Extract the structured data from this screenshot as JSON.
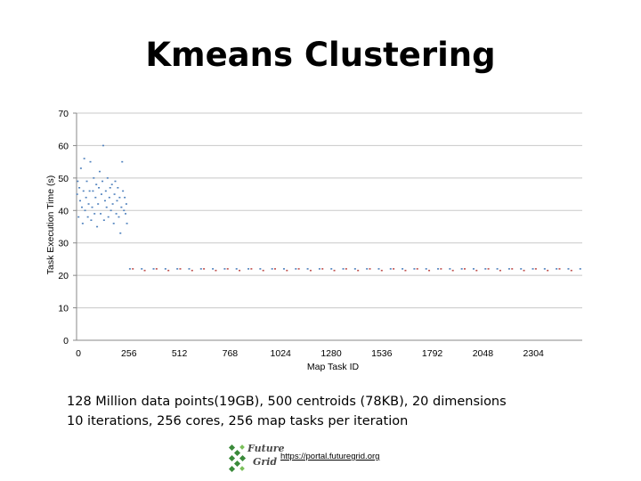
{
  "slide": {
    "title": "Kmeans Clustering",
    "caption_line1": "128 Million data points(19GB), 500 centroids (78KB), 20 dimensions",
    "caption_line2": "10 iterations, 256 cores, 256 map tasks per iteration",
    "logo_text_top": "Future",
    "logo_text_bottom": "Grid",
    "link_text": "https://portal.futuregrid.org"
  },
  "chart_data": {
    "type": "scatter",
    "title": "",
    "xlabel": "Map Task ID",
    "ylabel": "Task Execution Time (s)",
    "xlim": [
      0,
      2560
    ],
    "ylim": [
      0,
      70
    ],
    "x_ticks": [
      0,
      256,
      512,
      768,
      1024,
      1280,
      1536,
      1792,
      2048,
      2304
    ],
    "y_ticks": [
      0,
      10,
      20,
      30,
      40,
      50,
      60,
      70
    ],
    "grid": "horizontal",
    "legend": "none",
    "series": [
      {
        "color": "#4f81bd",
        "points": [
          [
            3,
            45
          ],
          [
            6,
            49
          ],
          [
            10,
            38
          ],
          [
            14,
            47
          ],
          [
            18,
            43
          ],
          [
            22,
            53
          ],
          [
            27,
            41
          ],
          [
            31,
            36
          ],
          [
            35,
            46
          ],
          [
            39,
            56
          ],
          [
            43,
            40
          ],
          [
            48,
            44
          ],
          [
            52,
            49
          ],
          [
            57,
            38
          ],
          [
            61,
            42
          ],
          [
            66,
            46
          ],
          [
            70,
            55
          ],
          [
            74,
            37
          ],
          [
            79,
            41
          ],
          [
            83,
            46
          ],
          [
            87,
            50
          ],
          [
            91,
            39
          ],
          [
            96,
            44
          ],
          [
            100,
            48
          ],
          [
            104,
            35
          ],
          [
            109,
            42
          ],
          [
            113,
            47
          ],
          [
            117,
            52
          ],
          [
            122,
            39
          ],
          [
            126,
            45
          ],
          [
            131,
            49
          ],
          [
            135,
            60
          ],
          [
            139,
            37
          ],
          [
            144,
            43
          ],
          [
            148,
            46
          ],
          [
            152,
            41
          ],
          [
            157,
            50
          ],
          [
            161,
            38
          ],
          [
            166,
            44
          ],
          [
            170,
            47
          ],
          [
            174,
            40
          ],
          [
            179,
            48
          ],
          [
            183,
            42
          ],
          [
            188,
            36
          ],
          [
            192,
            45
          ],
          [
            196,
            49
          ],
          [
            201,
            39
          ],
          [
            205,
            43
          ],
          [
            209,
            47
          ],
          [
            214,
            38
          ],
          [
            218,
            44
          ],
          [
            222,
            33
          ],
          [
            227,
            41
          ],
          [
            231,
            55
          ],
          [
            235,
            46
          ],
          [
            240,
            40
          ],
          [
            244,
            44
          ],
          [
            248,
            39
          ],
          [
            252,
            42
          ],
          [
            255,
            36
          ],
          [
            270,
            22
          ],
          [
            330,
            22
          ],
          [
            390,
            22
          ],
          [
            450,
            22
          ],
          [
            510,
            22
          ],
          [
            570,
            22
          ],
          [
            630,
            22
          ],
          [
            690,
            22
          ],
          [
            750,
            22
          ],
          [
            810,
            22
          ],
          [
            870,
            22
          ],
          [
            930,
            22
          ],
          [
            990,
            22
          ],
          [
            1050,
            22
          ],
          [
            1110,
            22
          ],
          [
            1170,
            22
          ],
          [
            1230,
            22
          ],
          [
            1290,
            22
          ],
          [
            1350,
            22
          ],
          [
            1410,
            22
          ],
          [
            1470,
            22
          ],
          [
            1530,
            22
          ],
          [
            1590,
            22
          ],
          [
            1650,
            22
          ],
          [
            1710,
            22
          ],
          [
            1770,
            22
          ],
          [
            1830,
            22
          ],
          [
            1890,
            22
          ],
          [
            1950,
            22
          ],
          [
            2010,
            22
          ],
          [
            2070,
            22
          ],
          [
            2130,
            22
          ],
          [
            2190,
            22
          ],
          [
            2250,
            22
          ],
          [
            2310,
            22
          ],
          [
            2370,
            22
          ],
          [
            2430,
            22
          ],
          [
            2490,
            22
          ],
          [
            2550,
            22
          ]
        ]
      },
      {
        "color": "#c0504d",
        "points": [
          [
            285,
            22
          ],
          [
            345,
            21.5
          ],
          [
            405,
            22
          ],
          [
            465,
            21.5
          ],
          [
            525,
            22
          ],
          [
            585,
            21.5
          ],
          [
            645,
            22
          ],
          [
            705,
            21.5
          ],
          [
            765,
            22
          ],
          [
            825,
            21.5
          ],
          [
            885,
            22
          ],
          [
            945,
            21.5
          ],
          [
            1005,
            22
          ],
          [
            1065,
            21.5
          ],
          [
            1125,
            22
          ],
          [
            1185,
            21.5
          ],
          [
            1245,
            22
          ],
          [
            1305,
            21.5
          ],
          [
            1365,
            22
          ],
          [
            1425,
            21.5
          ],
          [
            1485,
            22
          ],
          [
            1545,
            21.5
          ],
          [
            1605,
            22
          ],
          [
            1665,
            21.5
          ],
          [
            1725,
            22
          ],
          [
            1785,
            21.5
          ],
          [
            1845,
            22
          ],
          [
            1905,
            21.5
          ],
          [
            1965,
            22
          ],
          [
            2025,
            21.5
          ],
          [
            2085,
            22
          ],
          [
            2145,
            21.5
          ],
          [
            2205,
            22
          ],
          [
            2265,
            21.5
          ],
          [
            2325,
            22
          ],
          [
            2385,
            21.5
          ],
          [
            2445,
            22
          ],
          [
            2505,
            21.5
          ]
        ]
      }
    ]
  }
}
